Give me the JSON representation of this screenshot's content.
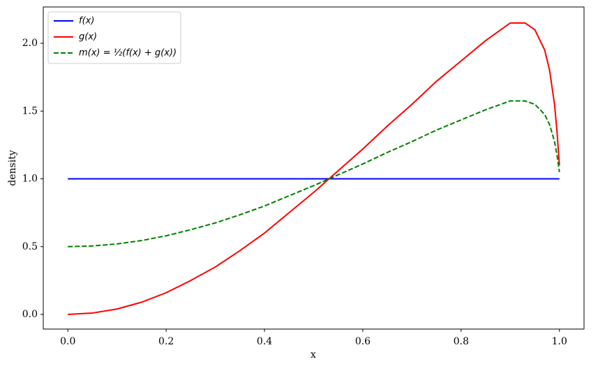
{
  "chart_data": {
    "type": "line",
    "xlabel": "x",
    "ylabel": "density",
    "x": [
      0,
      0.05,
      0.1,
      0.15,
      0.2,
      0.25,
      0.3,
      0.35,
      0.4,
      0.45,
      0.5,
      0.55,
      0.6,
      0.65,
      0.7,
      0.75,
      0.8,
      0.85,
      0.9,
      0.93,
      0.95,
      0.97,
      0.98,
      0.99,
      0.995,
      1.0
    ],
    "series": [
      {
        "name": "f(x)",
        "color": "#0000ff",
        "linestyle": "solid",
        "values": [
          1,
          1,
          1,
          1,
          1,
          1,
          1,
          1,
          1,
          1,
          1,
          1,
          1,
          1,
          1,
          1,
          1,
          1,
          1,
          1,
          1,
          1,
          1,
          1,
          1,
          1
        ]
      },
      {
        "name": "g(x)",
        "color": "#ff0000",
        "linestyle": "solid",
        "values": [
          0,
          0.01,
          0.04,
          0.09,
          0.16,
          0.25,
          0.35,
          0.47,
          0.6,
          0.75,
          0.9,
          1.06,
          1.22,
          1.39,
          1.55,
          1.72,
          1.87,
          2.02,
          2.15,
          2.15,
          2.1,
          1.95,
          1.8,
          1.55,
          1.35,
          1.1
        ]
      },
      {
        "name": "m(x) = ½(f(x) + g(x))",
        "color": "#008000",
        "linestyle": "dashed",
        "values": [
          0.5,
          0.505,
          0.52,
          0.545,
          0.58,
          0.625,
          0.675,
          0.735,
          0.8,
          0.875,
          0.95,
          1.03,
          1.11,
          1.195,
          1.275,
          1.36,
          1.435,
          1.51,
          1.575,
          1.575,
          1.55,
          1.475,
          1.4,
          1.275,
          1.175,
          1.05
        ]
      }
    ],
    "xlim": [
      -0.05,
      1.05
    ],
    "ylim": [
      -0.108,
      2.268
    ],
    "xticks": [
      {
        "value": 0,
        "label": "0.0"
      },
      {
        "value": 0.2,
        "label": "0.2"
      },
      {
        "value": 0.4,
        "label": "0.4"
      },
      {
        "value": 0.6,
        "label": "0.6"
      },
      {
        "value": 0.8,
        "label": "0.8"
      },
      {
        "value": 1.0,
        "label": "1.0"
      }
    ],
    "yticks": [
      {
        "value": 0,
        "label": "0.0"
      },
      {
        "value": 0.5,
        "label": "0.5"
      },
      {
        "value": 1.0,
        "label": "1.0"
      },
      {
        "value": 1.5,
        "label": "1.5"
      },
      {
        "value": 2.0,
        "label": "2.0"
      }
    ],
    "legend": "upper-left"
  }
}
